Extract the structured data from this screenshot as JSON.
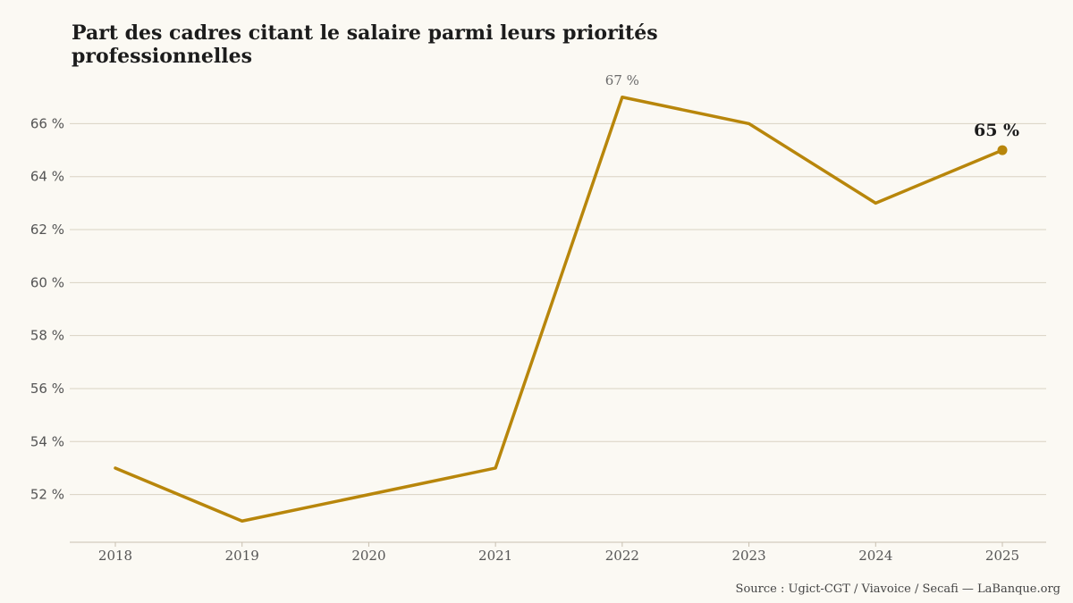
{
  "title": "Part des cadres citant le salaire parmi leurs priorités professionnelles",
  "source": "Source : Ugict-CGT / Viavoice / Secafi — LaBanque.org",
  "colors": {
    "line": "#b8860b",
    "grid": "#d9d2c3",
    "axis": "#c8c0b0",
    "background": "#fbf9f3"
  },
  "chart_data": {
    "type": "line",
    "x": [
      2018,
      2019,
      2020,
      2021,
      2022,
      2023,
      2024,
      2025
    ],
    "x_tick_labels": [
      "2018",
      "2019",
      "2020",
      "2021",
      "2022",
      "2023",
      "2024",
      "2025"
    ],
    "series": [
      {
        "values": [
          53,
          51,
          52,
          53,
          67,
          66,
          63,
          65
        ]
      }
    ],
    "ylim": [
      50.2,
      67.7
    ],
    "y_ticks": [
      52,
      54,
      56,
      58,
      60,
      62,
      64,
      66
    ],
    "y_tick_labels": [
      "52 %",
      "54 %",
      "56 %",
      "58 %",
      "60 %",
      "62 %",
      "64 %",
      "66 %"
    ],
    "grid": true,
    "annotations": [
      {
        "x": 2022,
        "y": 67,
        "text": "67 %"
      },
      {
        "x": 2025,
        "y": 65,
        "text": "65 %"
      }
    ],
    "xlabel": "",
    "ylabel": ""
  }
}
